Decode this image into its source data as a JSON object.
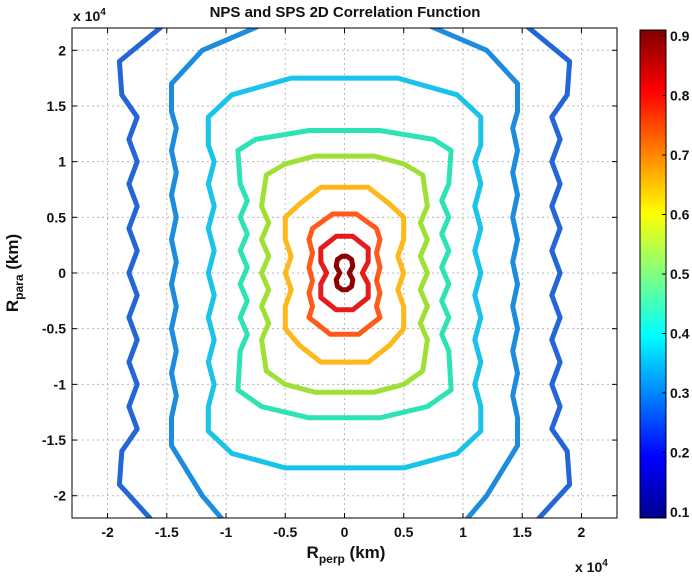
{
  "chart_data": {
    "type": "contour",
    "title": "NPS and SPS  2D Correlation Function",
    "xlabel": {
      "main": "R",
      "sub": "perp",
      "unit": " (km)"
    },
    "ylabel": {
      "main": "R",
      "sub": "para",
      "unit": " (km)"
    },
    "x_multiplier": {
      "prefix": "x 10",
      "exponent": "4"
    },
    "y_multiplier": {
      "prefix": "x 10",
      "exponent": "4"
    },
    "xlim": [
      -2.3,
      2.3
    ],
    "ylim": [
      -2.2,
      2.2
    ],
    "xticks": [
      -2,
      -1.5,
      -1,
      -0.5,
      0,
      0.5,
      1,
      1.5,
      2
    ],
    "xtick_labels": [
      "-2",
      "-1.5",
      "-1",
      "-0.5",
      "0",
      "0.5",
      "1",
      "1.5",
      "2"
    ],
    "yticks": [
      2,
      1.5,
      1,
      0.5,
      0,
      -0.5,
      -1,
      -1.5,
      -2
    ],
    "ytick_labels": [
      "2",
      "1.5",
      "1",
      "0.5",
      "0",
      "-0.5",
      "-1",
      "-1.5",
      "-2"
    ],
    "grid": true,
    "colorbar": {
      "range": [
        0.1,
        0.9
      ],
      "ticks": [
        0.9,
        0.8,
        0.7,
        0.6,
        0.5,
        0.4,
        0.3,
        0.2,
        0.1
      ],
      "tick_labels": [
        "0.9",
        "0.8",
        "0.7",
        "0.6",
        "0.5",
        "0.4",
        "0.3",
        "0.2",
        "0.1"
      ],
      "colors": [
        "#00008f",
        "#0000ff",
        "#0080ff",
        "#00ffff",
        "#80ff80",
        "#ffff00",
        "#ff8000",
        "#ff0000",
        "#800000"
      ]
    },
    "contours": [
      {
        "level": 0.9,
        "color": "#8b0000",
        "points": [
          [
            -0.02,
            0.15
          ],
          [
            0.02,
            0.15
          ],
          [
            0.06,
            0.12
          ],
          [
            0.07,
            0.06
          ],
          [
            0.04,
            0
          ],
          [
            0.07,
            -0.06
          ],
          [
            0.06,
            -0.12
          ],
          [
            0.02,
            -0.15
          ],
          [
            -0.02,
            -0.15
          ],
          [
            -0.06,
            -0.12
          ],
          [
            -0.07,
            -0.06
          ],
          [
            -0.04,
            0
          ],
          [
            -0.07,
            0.06
          ],
          [
            -0.06,
            0.12
          ]
        ]
      },
      {
        "level": 0.8,
        "color": "#e51c1c",
        "points": [
          [
            -0.07,
            0.33
          ],
          [
            0.07,
            0.33
          ],
          [
            0.2,
            0.22
          ],
          [
            0.2,
            0.1
          ],
          [
            0.15,
            0
          ],
          [
            0.2,
            -0.1
          ],
          [
            0.2,
            -0.22
          ],
          [
            0.07,
            -0.33
          ],
          [
            -0.07,
            -0.33
          ],
          [
            -0.2,
            -0.22
          ],
          [
            -0.2,
            -0.1
          ],
          [
            -0.15,
            0
          ],
          [
            -0.2,
            0.1
          ],
          [
            -0.2,
            0.22
          ]
        ]
      },
      {
        "level": 0.7,
        "color": "#ff5a1a",
        "points": [
          [
            -0.1,
            0.53
          ],
          [
            0.1,
            0.53
          ],
          [
            0.27,
            0.4
          ],
          [
            0.3,
            0.3
          ],
          [
            0.27,
            0.18
          ],
          [
            0.3,
            0.05
          ],
          [
            0.27,
            -0.07
          ],
          [
            0.3,
            -0.18
          ],
          [
            0.27,
            -0.3
          ],
          [
            0.3,
            -0.4
          ],
          [
            0.12,
            -0.55
          ],
          [
            -0.12,
            -0.55
          ],
          [
            -0.3,
            -0.4
          ],
          [
            -0.27,
            -0.3
          ],
          [
            -0.3,
            -0.18
          ],
          [
            -0.27,
            -0.07
          ],
          [
            -0.3,
            0.05
          ],
          [
            -0.27,
            0.18
          ],
          [
            -0.3,
            0.3
          ],
          [
            -0.27,
            0.4
          ]
        ]
      },
      {
        "level": 0.6,
        "color": "#ffb81a",
        "points": [
          [
            -0.2,
            0.77
          ],
          [
            0.2,
            0.77
          ],
          [
            0.38,
            0.62
          ],
          [
            0.5,
            0.5
          ],
          [
            0.5,
            0.3
          ],
          [
            0.45,
            0.15
          ],
          [
            0.5,
            0
          ],
          [
            0.45,
            -0.15
          ],
          [
            0.5,
            -0.3
          ],
          [
            0.5,
            -0.5
          ],
          [
            0.38,
            -0.65
          ],
          [
            0.2,
            -0.8
          ],
          [
            -0.2,
            -0.8
          ],
          [
            -0.38,
            -0.65
          ],
          [
            -0.5,
            -0.5
          ],
          [
            -0.5,
            -0.3
          ],
          [
            -0.45,
            -0.15
          ],
          [
            -0.5,
            0
          ],
          [
            -0.45,
            0.15
          ],
          [
            -0.5,
            0.3
          ],
          [
            -0.5,
            0.5
          ],
          [
            -0.38,
            0.62
          ]
        ]
      },
      {
        "level": 0.5,
        "color": "#9ee036",
        "points": [
          [
            -0.25,
            1.05
          ],
          [
            0.25,
            1.05
          ],
          [
            0.5,
            0.98
          ],
          [
            0.66,
            0.88
          ],
          [
            0.7,
            0.6
          ],
          [
            0.64,
            0.45
          ],
          [
            0.7,
            0.3
          ],
          [
            0.64,
            0.15
          ],
          [
            0.7,
            0
          ],
          [
            0.64,
            -0.15
          ],
          [
            0.7,
            -0.3
          ],
          [
            0.64,
            -0.45
          ],
          [
            0.7,
            -0.6
          ],
          [
            0.66,
            -0.88
          ],
          [
            0.5,
            -1.0
          ],
          [
            0.25,
            -1.07
          ],
          [
            -0.25,
            -1.07
          ],
          [
            -0.5,
            -1.0
          ],
          [
            -0.66,
            -0.88
          ],
          [
            -0.7,
            -0.6
          ],
          [
            -0.64,
            -0.45
          ],
          [
            -0.7,
            -0.3
          ],
          [
            -0.64,
            -0.15
          ],
          [
            -0.7,
            0
          ],
          [
            -0.64,
            0.15
          ],
          [
            -0.7,
            0.3
          ],
          [
            -0.64,
            0.45
          ],
          [
            -0.7,
            0.6
          ],
          [
            -0.66,
            0.88
          ],
          [
            -0.5,
            0.98
          ]
        ]
      },
      {
        "level": 0.4,
        "color": "#2de2b5",
        "points": [
          [
            -0.3,
            1.28
          ],
          [
            0.3,
            1.28
          ],
          [
            0.75,
            1.2
          ],
          [
            0.9,
            1.1
          ],
          [
            0.88,
            0.8
          ],
          [
            0.82,
            0.65
          ],
          [
            0.88,
            0.5
          ],
          [
            0.82,
            0.35
          ],
          [
            0.88,
            0.2
          ],
          [
            0.82,
            0.05
          ],
          [
            0.88,
            -0.1
          ],
          [
            0.82,
            -0.25
          ],
          [
            0.88,
            -0.4
          ],
          [
            0.82,
            -0.55
          ],
          [
            0.88,
            -0.7
          ],
          [
            0.9,
            -1.05
          ],
          [
            0.7,
            -1.2
          ],
          [
            0.3,
            -1.3
          ],
          [
            -0.3,
            -1.3
          ],
          [
            -0.7,
            -1.2
          ],
          [
            -0.9,
            -1.05
          ],
          [
            -0.88,
            -0.7
          ],
          [
            -0.82,
            -0.55
          ],
          [
            -0.88,
            -0.4
          ],
          [
            -0.82,
            -0.25
          ],
          [
            -0.88,
            -0.1
          ],
          [
            -0.82,
            0.05
          ],
          [
            -0.88,
            0.2
          ],
          [
            -0.82,
            0.35
          ],
          [
            -0.88,
            0.5
          ],
          [
            -0.82,
            0.65
          ],
          [
            -0.88,
            0.8
          ],
          [
            -0.9,
            1.1
          ],
          [
            -0.75,
            1.2
          ]
        ]
      },
      {
        "level": 0.35,
        "color": "#19c3ea",
        "points": [
          [
            -0.45,
            1.75
          ],
          [
            0.45,
            1.75
          ],
          [
            0.95,
            1.6
          ],
          [
            1.15,
            1.4
          ],
          [
            1.15,
            1.15
          ],
          [
            1.1,
            1.0
          ],
          [
            1.15,
            0.8
          ],
          [
            1.1,
            0.6
          ],
          [
            1.15,
            0.4
          ],
          [
            1.1,
            0.2
          ],
          [
            1.15,
            0
          ],
          [
            1.1,
            -0.2
          ],
          [
            1.15,
            -0.4
          ],
          [
            1.1,
            -0.6
          ],
          [
            1.15,
            -0.8
          ],
          [
            1.1,
            -1.0
          ],
          [
            1.15,
            -1.2
          ],
          [
            1.15,
            -1.42
          ],
          [
            0.95,
            -1.62
          ],
          [
            0.5,
            -1.75
          ],
          [
            -0.5,
            -1.75
          ],
          [
            -0.95,
            -1.62
          ],
          [
            -1.15,
            -1.42
          ],
          [
            -1.15,
            -1.2
          ],
          [
            -1.1,
            -1.0
          ],
          [
            -1.15,
            -0.8
          ],
          [
            -1.1,
            -0.6
          ],
          [
            -1.15,
            -0.4
          ],
          [
            -1.1,
            -0.2
          ],
          [
            -1.15,
            0
          ],
          [
            -1.1,
            0.2
          ],
          [
            -1.15,
            0.4
          ],
          [
            -1.1,
            0.6
          ],
          [
            -1.15,
            0.8
          ],
          [
            -1.1,
            1.0
          ],
          [
            -1.15,
            1.15
          ],
          [
            -1.15,
            1.4
          ],
          [
            -0.95,
            1.6
          ]
        ]
      },
      {
        "level": 0.3,
        "color": "#1e8cde",
        "closed": false,
        "points": [
          [
            -0.65,
            2.25
          ],
          [
            0.65,
            2.25
          ],
          [
            1.2,
            2.0
          ],
          [
            1.46,
            1.7
          ],
          [
            1.46,
            1.45
          ],
          [
            1.42,
            1.3
          ],
          [
            1.46,
            1.1
          ],
          [
            1.42,
            0.9
          ],
          [
            1.46,
            0.7
          ],
          [
            1.42,
            0.5
          ],
          [
            1.46,
            0.3
          ],
          [
            1.42,
            0.1
          ],
          [
            1.46,
            -0.1
          ],
          [
            1.42,
            -0.3
          ],
          [
            1.46,
            -0.5
          ],
          [
            1.42,
            -0.7
          ],
          [
            1.46,
            -0.9
          ],
          [
            1.42,
            -1.1
          ],
          [
            1.46,
            -1.3
          ],
          [
            1.46,
            -1.55
          ],
          [
            1.2,
            -2.0
          ],
          [
            1.0,
            -2.25
          ],
          [
            -1.0,
            -2.25
          ],
          [
            -1.2,
            -2.0
          ],
          [
            -1.46,
            -1.55
          ],
          [
            -1.46,
            -1.3
          ],
          [
            -1.42,
            -1.1
          ],
          [
            -1.46,
            -0.9
          ],
          [
            -1.42,
            -0.7
          ],
          [
            -1.46,
            -0.5
          ],
          [
            -1.42,
            -0.3
          ],
          [
            -1.46,
            -0.1
          ],
          [
            -1.42,
            0.1
          ],
          [
            -1.46,
            0.3
          ],
          [
            -1.42,
            0.5
          ],
          [
            -1.46,
            0.7
          ],
          [
            -1.42,
            0.9
          ],
          [
            -1.46,
            1.1
          ],
          [
            -1.42,
            1.3
          ],
          [
            -1.46,
            1.45
          ],
          [
            -1.46,
            1.7
          ],
          [
            -1.2,
            2.0
          ],
          [
            -0.65,
            2.25
          ]
        ]
      },
      {
        "level": 0.25,
        "color": "#2266d8",
        "closed": false,
        "points": [
          [
            -1.5,
            2.25
          ],
          [
            -1.9,
            1.9
          ],
          [
            -1.88,
            1.6
          ],
          [
            -1.75,
            1.4
          ],
          [
            -1.82,
            1.2
          ],
          [
            -1.75,
            1.0
          ],
          [
            -1.82,
            0.8
          ],
          [
            -1.75,
            0.6
          ],
          [
            -1.82,
            0.4
          ],
          [
            -1.75,
            0.2
          ],
          [
            -1.82,
            0
          ],
          [
            -1.75,
            -0.2
          ],
          [
            -1.82,
            -0.4
          ],
          [
            -1.75,
            -0.6
          ],
          [
            -1.82,
            -0.8
          ],
          [
            -1.75,
            -1.0
          ],
          [
            -1.82,
            -1.2
          ],
          [
            -1.75,
            -1.4
          ],
          [
            -1.88,
            -1.6
          ],
          [
            -1.9,
            -1.9
          ],
          [
            -1.6,
            -2.25
          ]
        ]
      },
      {
        "level": 0.25,
        "color": "#2266d8",
        "closed": false,
        "points": [
          [
            1.5,
            2.25
          ],
          [
            1.9,
            1.9
          ],
          [
            1.88,
            1.6
          ],
          [
            1.75,
            1.4
          ],
          [
            1.82,
            1.2
          ],
          [
            1.75,
            1.0
          ],
          [
            1.82,
            0.8
          ],
          [
            1.75,
            0.6
          ],
          [
            1.82,
            0.4
          ],
          [
            1.75,
            0.2
          ],
          [
            1.82,
            0
          ],
          [
            1.75,
            -0.2
          ],
          [
            1.82,
            -0.4
          ],
          [
            1.75,
            -0.6
          ],
          [
            1.82,
            -0.8
          ],
          [
            1.75,
            -1.0
          ],
          [
            1.82,
            -1.2
          ],
          [
            1.75,
            -1.4
          ],
          [
            1.88,
            -1.6
          ],
          [
            1.9,
            -1.9
          ],
          [
            1.6,
            -2.25
          ]
        ]
      }
    ]
  }
}
